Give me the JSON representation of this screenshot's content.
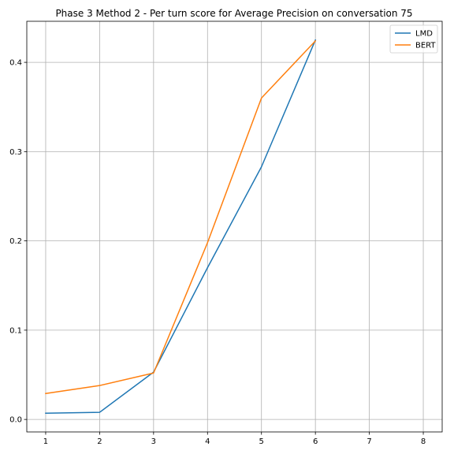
{
  "chart_data": {
    "type": "line",
    "title": "Phase 3 Method 2 - Per turn score for Average Precision on conversation 75",
    "xlabel": "",
    "ylabel": "",
    "x": [
      1,
      2,
      3,
      4,
      5,
      6
    ],
    "xticks": [
      1,
      2,
      3,
      4,
      5,
      6,
      7,
      8
    ],
    "yticks": [
      0.0,
      0.1,
      0.2,
      0.3,
      0.4
    ],
    "ytick_labels": [
      "0.0",
      "0.1",
      "0.2",
      "0.3",
      "0.4"
    ],
    "xlim": [
      0.65,
      8.35
    ],
    "ylim": [
      -0.014,
      0.446
    ],
    "grid": true,
    "legend_position": "top-right",
    "series": [
      {
        "name": "LMD",
        "color": "#1f77b4",
        "values": [
          0.007,
          0.008,
          0.053,
          0.17,
          0.283,
          0.425
        ]
      },
      {
        "name": "BERT",
        "color": "#ff7f0e",
        "values": [
          0.029,
          0.038,
          0.052,
          0.198,
          0.36,
          0.424
        ]
      }
    ]
  }
}
